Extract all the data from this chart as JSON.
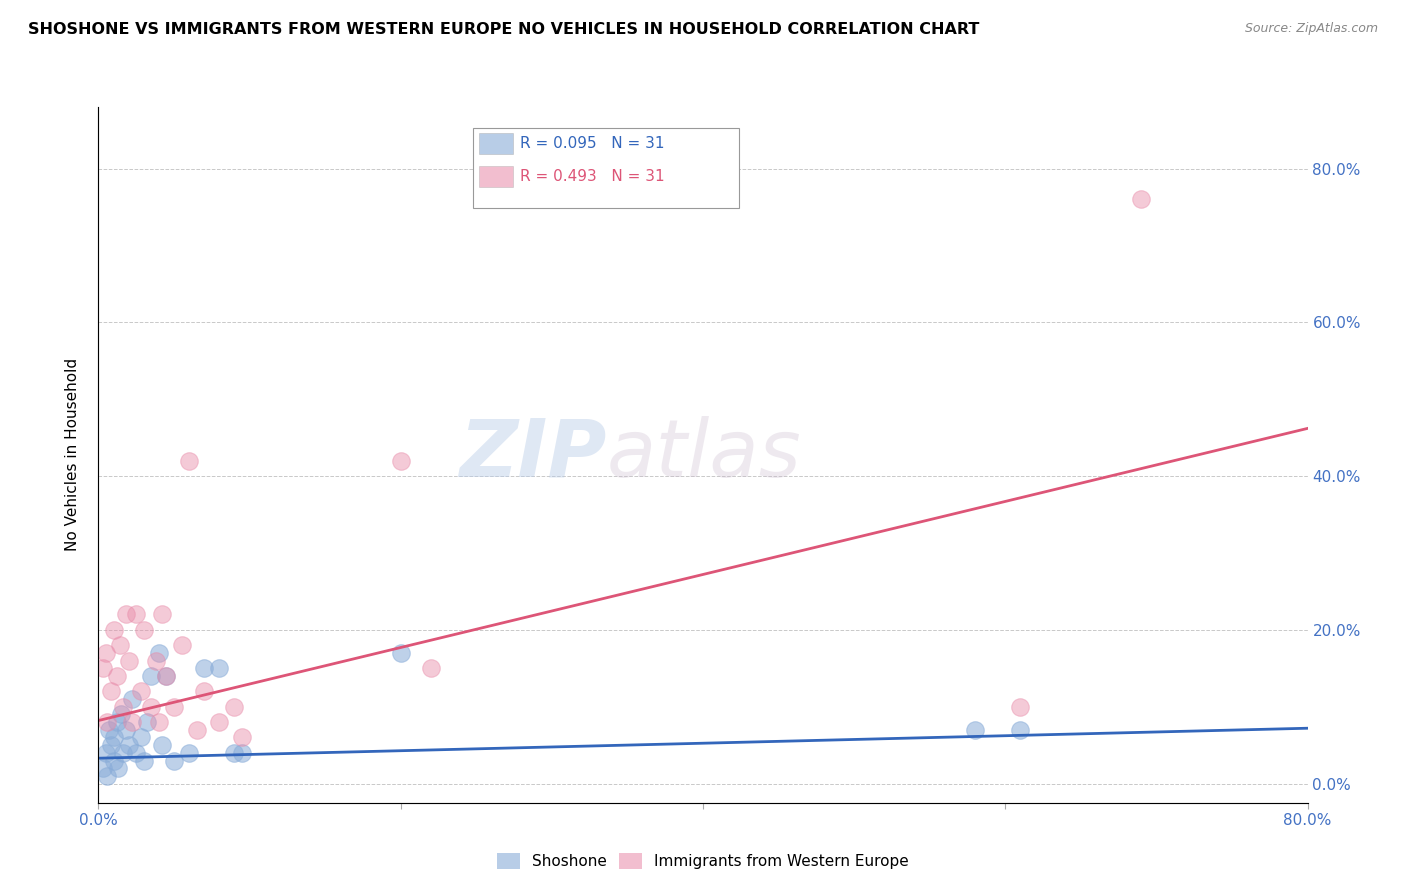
{
  "title": "SHOSHONE VS IMMIGRANTS FROM WESTERN EUROPE NO VEHICLES IN HOUSEHOLD CORRELATION CHART",
  "source": "Source: ZipAtlas.com",
  "ylabel": "No Vehicles in Household",
  "xlim": [
    0.0,
    0.8
  ],
  "ylim": [
    -0.025,
    0.88
  ],
  "ytick_right_labels": [
    "0.0%",
    "20.0%",
    "40.0%",
    "60.0%",
    "80.0%"
  ],
  "ytick_right_vals": [
    0.0,
    0.2,
    0.4,
    0.6,
    0.8
  ],
  "xtick_vals": [
    0.0,
    0.2,
    0.4,
    0.6,
    0.8
  ],
  "xtick_labels": [
    "0.0%",
    "",
    "",
    "",
    "80.0%"
  ],
  "shoshone_color": "#89acd8",
  "immigrant_color": "#e88aa8",
  "shoshone_line_color": "#3366bb",
  "immigrant_line_color": "#dd5577",
  "watermark_zip": "ZIP",
  "watermark_atlas": "atlas",
  "shoshone_x": [
    0.003,
    0.005,
    0.006,
    0.007,
    0.008,
    0.01,
    0.01,
    0.012,
    0.013,
    0.015,
    0.016,
    0.018,
    0.02,
    0.022,
    0.025,
    0.028,
    0.03,
    0.032,
    0.035,
    0.04,
    0.042,
    0.045,
    0.05,
    0.06,
    0.07,
    0.08,
    0.09,
    0.095,
    0.2,
    0.58,
    0.61
  ],
  "shoshone_y": [
    0.02,
    0.04,
    0.01,
    0.07,
    0.05,
    0.06,
    0.03,
    0.08,
    0.02,
    0.09,
    0.04,
    0.07,
    0.05,
    0.11,
    0.04,
    0.06,
    0.03,
    0.08,
    0.14,
    0.17,
    0.05,
    0.14,
    0.03,
    0.04,
    0.15,
    0.15,
    0.04,
    0.04,
    0.17,
    0.07,
    0.07
  ],
  "immigrant_x": [
    0.003,
    0.005,
    0.006,
    0.008,
    0.01,
    0.012,
    0.014,
    0.016,
    0.018,
    0.02,
    0.022,
    0.025,
    0.028,
    0.03,
    0.035,
    0.038,
    0.04,
    0.042,
    0.045,
    0.05,
    0.055,
    0.06,
    0.065,
    0.07,
    0.08,
    0.09,
    0.095,
    0.2,
    0.22,
    0.61,
    0.69
  ],
  "immigrant_y": [
    0.15,
    0.17,
    0.08,
    0.12,
    0.2,
    0.14,
    0.18,
    0.1,
    0.22,
    0.16,
    0.08,
    0.22,
    0.12,
    0.2,
    0.1,
    0.16,
    0.08,
    0.22,
    0.14,
    0.1,
    0.18,
    0.42,
    0.07,
    0.12,
    0.08,
    0.1,
    0.06,
    0.42,
    0.15,
    0.1,
    0.76
  ],
  "pink_line_x0": 0.0,
  "pink_line_y0": 0.082,
  "pink_line_x1": 0.8,
  "pink_line_y1": 0.462,
  "blue_line_x0": 0.0,
  "blue_line_y0": 0.033,
  "blue_line_x1": 0.8,
  "blue_line_y1": 0.072
}
